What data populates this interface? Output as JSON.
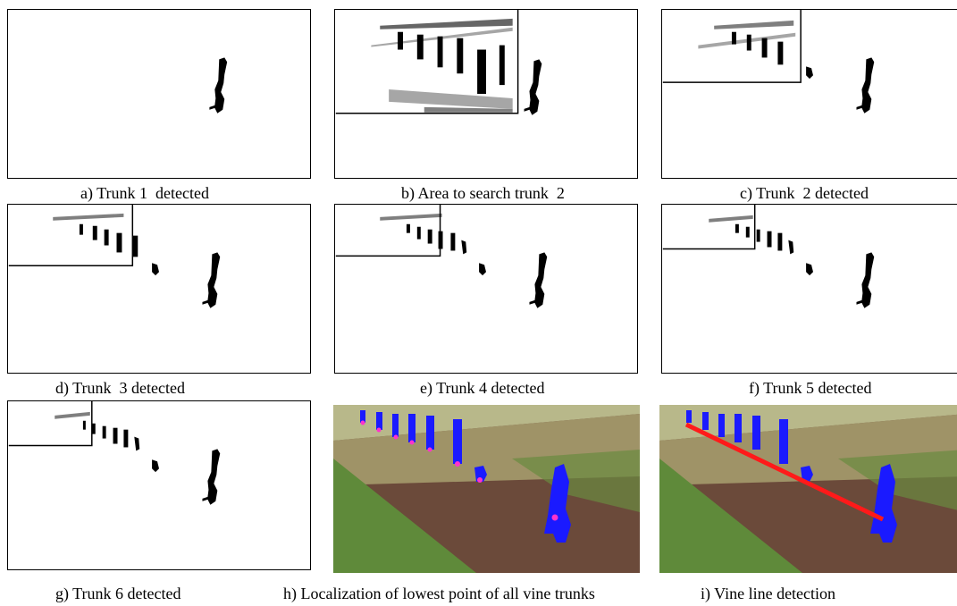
{
  "figure": {
    "panels": [
      {
        "id": "a",
        "caption": "a) Trunk 1  detected"
      },
      {
        "id": "b",
        "caption": "b) Area to search trunk  2"
      },
      {
        "id": "c",
        "caption": "c) Trunk  2 detected"
      },
      {
        "id": "d",
        "caption": "d) Trunk  3 detected"
      },
      {
        "id": "e",
        "caption": "e) Trunk 4 detected"
      },
      {
        "id": "f",
        "caption": "f) Trunk 5 detected"
      },
      {
        "id": "g",
        "caption": "g) Trunk 6 detected"
      },
      {
        "id": "h",
        "caption": "h) Localization of lowest point of all vine trunks"
      },
      {
        "id": "i",
        "caption": "i) Vine line detection"
      }
    ],
    "colors": {
      "trunk_mask": "#000000",
      "trunk_overlay": "#1a1aff",
      "lowest_point": "#ff33cc",
      "vine_line": "#ff1a1a",
      "grass": "#5f8a3a",
      "soil": "#6b4a3a",
      "foliage": "#a8a070"
    }
  }
}
